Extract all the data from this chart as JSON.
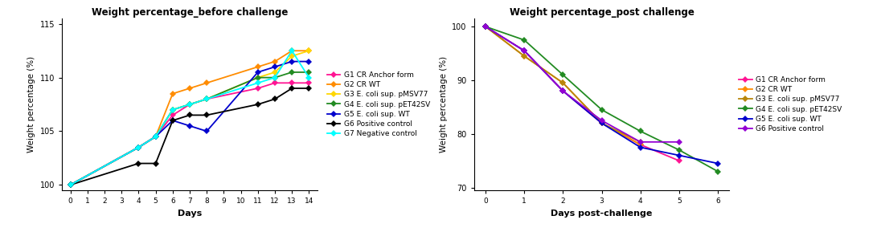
{
  "left_title": "Weight percentage_before challenge",
  "right_title": "Weight percentage_post challenge",
  "left_xlabel": "Days",
  "right_xlabel": "Days post-challenge",
  "ylabel": "Weight percentage (%)",
  "left_days": [
    0,
    4,
    5,
    6,
    7,
    8,
    11,
    12,
    13,
    14
  ],
  "right_days": [
    0,
    1,
    2,
    3,
    4,
    5,
    6
  ],
  "left_data": {
    "G1 CR Anchor form": [
      100,
      103.5,
      104.5,
      106.5,
      107.5,
      108.0,
      109.0,
      109.5,
      109.5,
      109.5
    ],
    "G2 CR WT": [
      100,
      103.5,
      104.5,
      108.5,
      109.0,
      109.5,
      111.0,
      111.5,
      112.5,
      112.5
    ],
    "G3 E. coli sup. pMSV77": [
      100,
      103.5,
      104.5,
      107.0,
      107.5,
      108.0,
      110.0,
      110.5,
      112.0,
      112.5
    ],
    "G4 E. coli sup. pET42SV": [
      100,
      103.5,
      104.5,
      107.0,
      107.5,
      108.0,
      110.0,
      110.0,
      110.5,
      110.5
    ],
    "G5 E. coli sup. WT": [
      100,
      103.5,
      104.5,
      106.0,
      105.5,
      105.0,
      110.5,
      111.0,
      111.5,
      111.5
    ],
    "G6 Positive control": [
      100,
      102.0,
      102.0,
      106.0,
      106.5,
      106.5,
      107.5,
      108.0,
      109.0,
      109.0
    ],
    "G7 Negative control": [
      100,
      103.5,
      104.5,
      107.0,
      107.5,
      108.0,
      109.5,
      110.0,
      112.5,
      110.0
    ]
  },
  "right_data": {
    "G1 CR Anchor form": [
      100,
      95.5,
      88.0,
      82.0,
      78.0,
      75.0,
      null
    ],
    "G2 CR WT": [
      100,
      94.5,
      89.5,
      82.0,
      78.0,
      null,
      null
    ],
    "G3 E. coli sup. pMSV77": [
      100,
      94.5,
      89.5,
      82.0,
      78.5,
      null,
      null
    ],
    "G4 E. coli sup. pET42SV": [
      100,
      97.5,
      91.0,
      84.5,
      80.5,
      77.0,
      73.0
    ],
    "G5 E. coli sup. WT": [
      100,
      95.5,
      88.0,
      82.0,
      77.5,
      76.0,
      74.5
    ],
    "G6 Positive control": [
      100,
      95.5,
      88.0,
      82.5,
      78.5,
      78.5,
      null
    ]
  },
  "left_colors": {
    "G1 CR Anchor form": "#FF1493",
    "G2 CR WT": "#FF8C00",
    "G3 E. coli sup. pMSV77": "#FFD700",
    "G4 E. coli sup. pET42SV": "#228B22",
    "G5 E. coli sup. WT": "#0000CD",
    "G6 Positive control": "#000000",
    "G7 Negative control": "#00FFFF"
  },
  "right_colors": {
    "G1 CR Anchor form": "#FF1493",
    "G2 CR WT": "#FF8C00",
    "G3 E. coli sup. pMSV77": "#B8860B",
    "G4 E. coli sup. pET42SV": "#228B22",
    "G5 E. coli sup. WT": "#0000CD",
    "G6 Positive control": "#9400D3"
  },
  "left_groups": [
    "G1 CR Anchor form",
    "G2 CR WT",
    "G3 E. coli sup. pMSV77",
    "G4 E. coli sup. pET42SV",
    "G5 E. coli sup. WT",
    "G6 Positive control",
    "G7 Negative control"
  ],
  "right_groups": [
    "G1 CR Anchor form",
    "G2 CR WT",
    "G3 E. coli sup. pMSV77",
    "G4 E. coli sup. pET42SV",
    "G5 E. coli sup. WT",
    "G6 Positive control"
  ],
  "left_ylim": [
    99.5,
    115.5
  ],
  "left_yticks": [
    100,
    105,
    110,
    115
  ],
  "right_ylim": [
    69.5,
    101.5
  ],
  "right_yticks": [
    70,
    80,
    90,
    100
  ],
  "left_xticks": [
    0,
    1,
    2,
    3,
    4,
    5,
    6,
    7,
    8,
    9,
    10,
    11,
    12,
    13,
    14
  ],
  "right_xticks": [
    0,
    1,
    2,
    3,
    4,
    5,
    6
  ]
}
